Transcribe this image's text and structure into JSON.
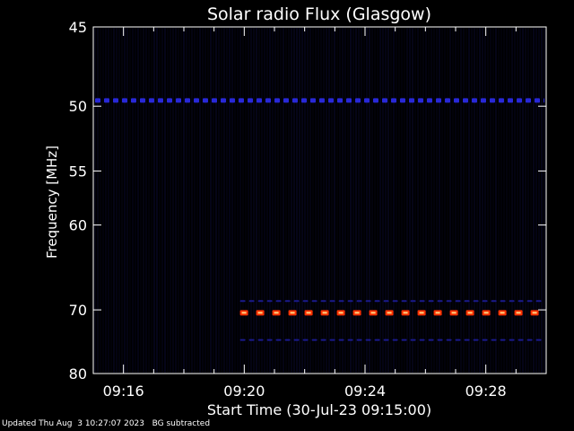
{
  "chart_data": {
    "type": "heatmap",
    "title": "Solar radio Flux (Glasgow)",
    "xlabel": "Start Time (30-Jul-23 09:15:00)",
    "ylabel": "Frequency [MHz]",
    "y_ticks": [
      45,
      50,
      55,
      60,
      70,
      80
    ],
    "ylim": [
      45,
      80
    ],
    "y_scale": "reciprocal",
    "x_ticks": [
      "09:16",
      "09:20",
      "09:24",
      "09:28"
    ],
    "x_tick_minutes": [
      16,
      20,
      24,
      28
    ],
    "xlim_minutes": [
      15,
      30
    ],
    "colormap": [
      "#000000",
      "#0a0a40",
      "#2020c0",
      "#ff3000",
      "#ffd080"
    ],
    "bands": [
      {
        "freq_mhz": 49.6,
        "start_minute": 15,
        "end_minute": 30,
        "level": "medium",
        "color": "#2828d8"
      },
      {
        "freq_mhz": 70.4,
        "start_minute": 19.8,
        "end_minute": 30,
        "level": "high",
        "color": "#ff3000"
      },
      {
        "freq_mhz": 68.8,
        "start_minute": 19.8,
        "end_minute": 30,
        "level": "low",
        "color": "#1a1a8c"
      },
      {
        "freq_mhz": 74.4,
        "start_minute": 19.8,
        "end_minute": 30,
        "level": "low",
        "color": "#1a1a8c"
      }
    ]
  },
  "footer": {
    "updated": "Updated Thu Aug  3 10:27:07 2023",
    "note": "BG subtracted"
  }
}
